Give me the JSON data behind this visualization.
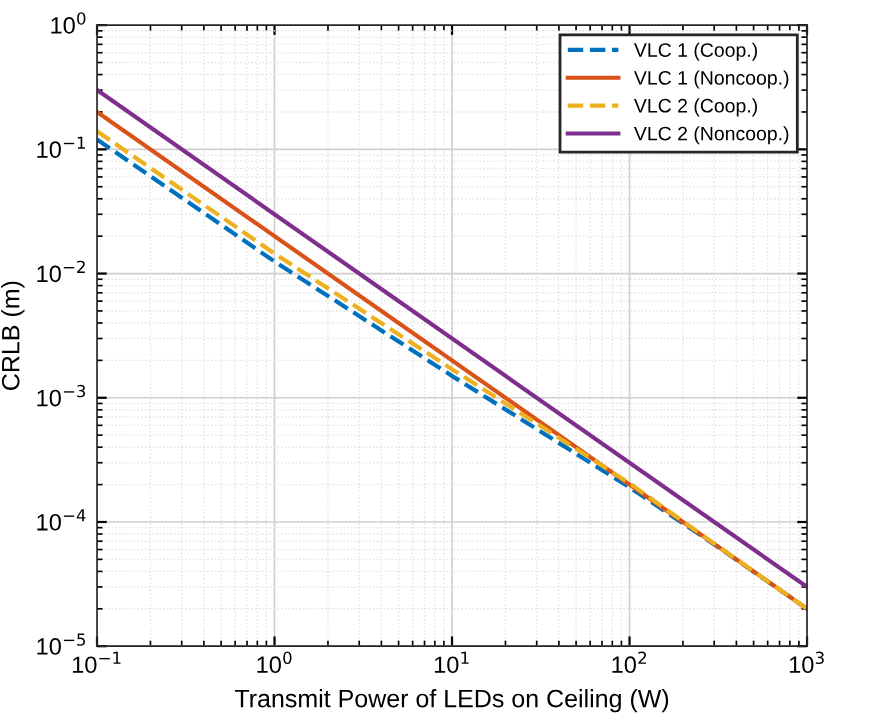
{
  "chart_data": {
    "type": "line",
    "xlabel": "Transmit Power of LEDs on Ceiling (W)",
    "ylabel": "CRLB (m)",
    "log": "xy",
    "grid": true,
    "legend": "top right",
    "xlim": [
      0.1,
      1000
    ],
    "ylim": [
      1e-05,
      1
    ],
    "xticks": [
      {
        "value": 0.1,
        "label": "10$^{−1}$"
      },
      {
        "value": 1,
        "label": "10$^{0}$"
      },
      {
        "value": 10,
        "label": "10$^{1}$"
      },
      {
        "value": 100,
        "label": "10$^{2}$"
      },
      {
        "value": 1000,
        "label": "10$^{3}$"
      }
    ],
    "yticks": [
      {
        "value": 1e-05,
        "label": "10$^{−5}$"
      },
      {
        "value": 0.0001,
        "label": "10$^{−4}$"
      },
      {
        "value": 0.001,
        "label": "10$^{−3}$"
      },
      {
        "value": 0.01,
        "label": "10$^{−2}$"
      },
      {
        "value": 0.1,
        "label": "10$^{−1}$"
      },
      {
        "value": 1,
        "label": "10$^{0}$"
      }
    ],
    "series": [
      {
        "name": "VLC 1 (Coop.)",
        "color": "#0072bd",
        "line_style": "dashed",
        "x": [
          0.1,
          1,
          10,
          30,
          100,
          300,
          1000
        ],
        "values": [
          0.12,
          0.0125,
          0.0015,
          0.00056,
          0.00019,
          6.6e-05,
          2e-05
        ]
      },
      {
        "name": "VLC 1 (Noncoop.)",
        "color": "#d95319",
        "line_style": "solid",
        "x": [
          0.1,
          1000
        ],
        "values": [
          0.2,
          2e-05
        ]
      },
      {
        "name": "VLC 2 (Coop.)",
        "color": "#edb120",
        "line_style": "dashed",
        "x": [
          0.1,
          1,
          10,
          30,
          100,
          300,
          1000
        ],
        "values": [
          0.14,
          0.0145,
          0.0017,
          0.00062,
          0.000205,
          6.7e-05,
          2e-05
        ]
      },
      {
        "name": "VLC 2 (Noncoop.)",
        "color": "#7e2f8e",
        "line_style": "solid",
        "x": [
          0.1,
          1000
        ],
        "values": [
          0.3,
          3e-05
        ]
      }
    ]
  }
}
